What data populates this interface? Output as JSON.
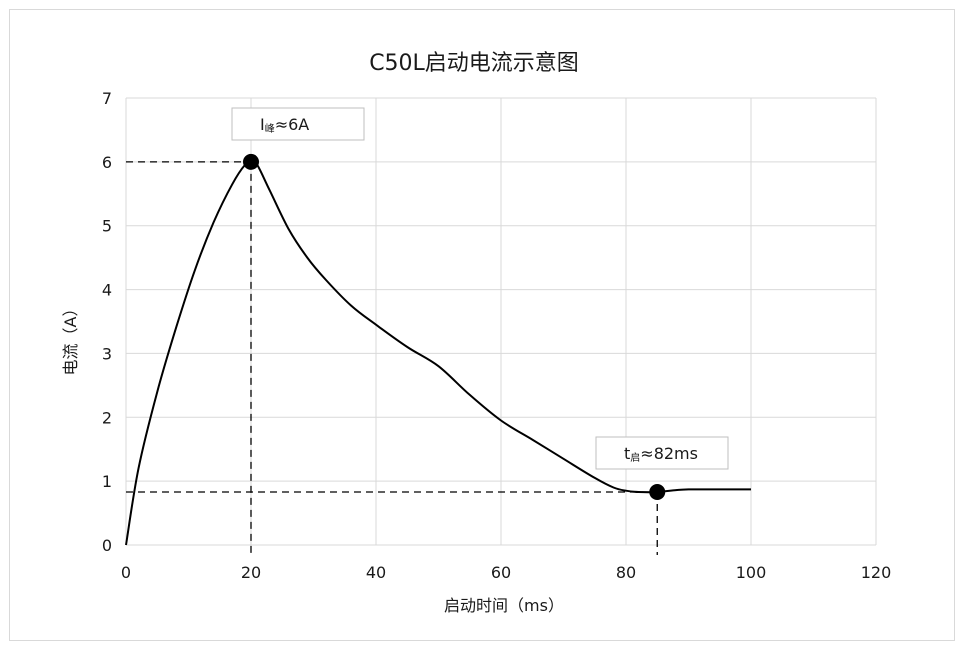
{
  "chart_data": {
    "type": "line",
    "title": "C50L启动电流示意图",
    "xlabel": "启动时间（ms）",
    "ylabel": "电流（A）",
    "xlim": [
      0,
      120
    ],
    "ylim": [
      0,
      7
    ],
    "xticks": [
      0,
      20,
      40,
      60,
      80,
      100,
      120
    ],
    "yticks": [
      0,
      1,
      2,
      3,
      4,
      5,
      6,
      7
    ],
    "grid": true,
    "series": [
      {
        "x": [
          0,
          2,
          5,
          8,
          11,
          14,
          17,
          19,
          20,
          21,
          23,
          26,
          29,
          32,
          36,
          40,
          45,
          50,
          55,
          60,
          65,
          70,
          75,
          78,
          80,
          82,
          85,
          88,
          90,
          95,
          100
        ],
        "y": [
          0,
          1.2,
          2.4,
          3.4,
          4.3,
          5.05,
          5.65,
          5.95,
          6.0,
          5.95,
          5.55,
          4.95,
          4.5,
          4.15,
          3.75,
          3.45,
          3.1,
          2.8,
          2.35,
          1.95,
          1.65,
          1.35,
          1.05,
          0.9,
          0.85,
          0.83,
          0.83,
          0.86,
          0.87,
          0.87,
          0.87
        ]
      }
    ],
    "markers": [
      {
        "x": 20,
        "y": 6.0,
        "label_main": "I",
        "label_sub": "峰",
        "label_rest": "≈6A"
      },
      {
        "x": 85,
        "y": 0.83,
        "label_main": "t",
        "label_sub": "启",
        "label_rest": "≈82ms"
      }
    ],
    "colors": {
      "line": "#000000",
      "grid": "#d9d9d9",
      "frame": "#d9d9d9",
      "callout_border": "#bfbfbf"
    }
  }
}
